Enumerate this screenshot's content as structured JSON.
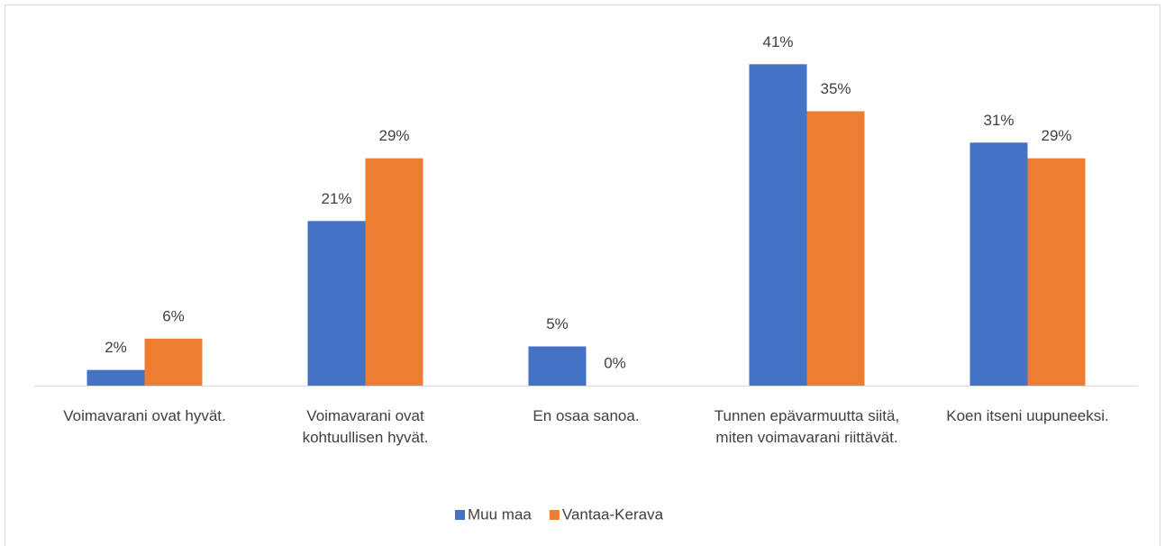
{
  "chart_data": {
    "type": "bar",
    "categories": [
      "Voimavarani ovat hyvät.",
      "Voimavarani ovat kohtuullisen hyvät.",
      "En osaa sanoa.",
      "Tunnen epävarmuutta siitä, miten voimavarani riittävät.",
      "Koen itseni uupuneeksi."
    ],
    "series": [
      {
        "name": "Muu maa",
        "color": "#4472c4",
        "values": [
          2,
          21,
          5,
          41,
          31
        ],
        "value_labels": [
          "2%",
          "21%",
          "5%",
          "41%",
          "31%"
        ]
      },
      {
        "name": "Vantaa-Kerava",
        "color": "#ed7d31",
        "values": [
          6,
          29,
          0,
          35,
          29
        ],
        "value_labels": [
          "6%",
          "29%",
          "0%",
          "35%",
          "29%"
        ]
      }
    ],
    "legend": "bottom"
  }
}
